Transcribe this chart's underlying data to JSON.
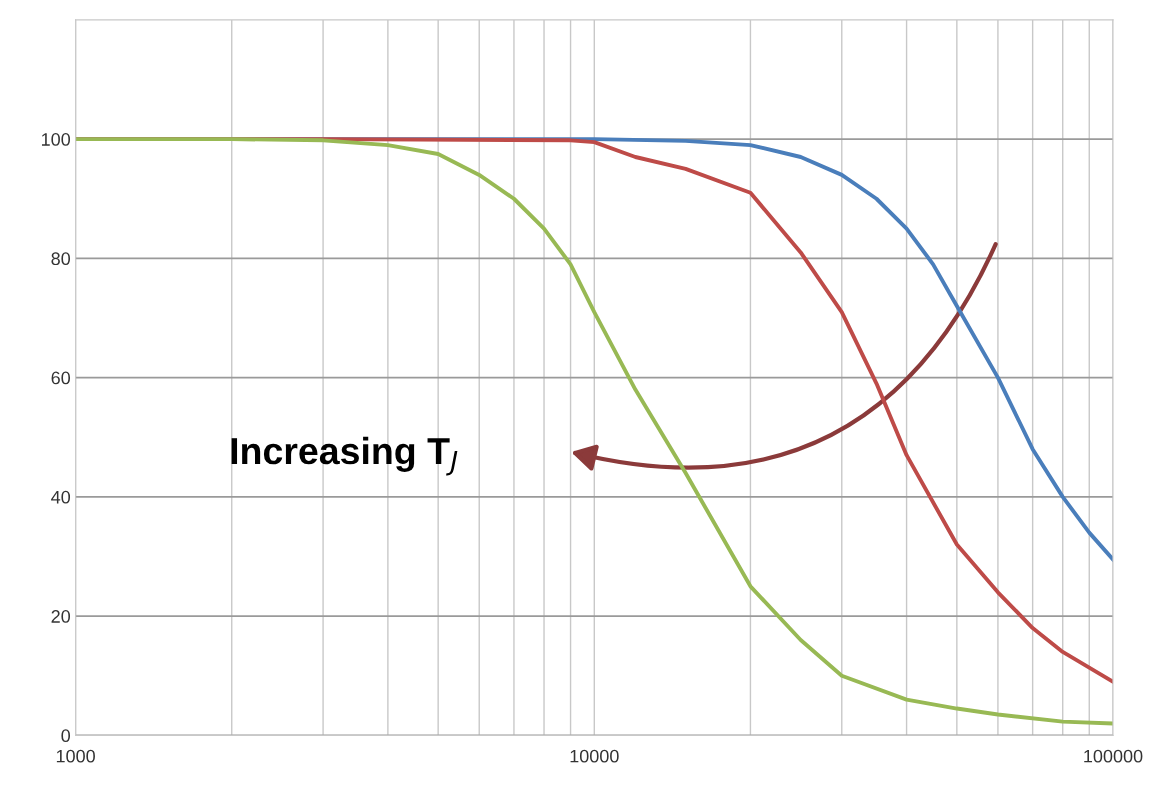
{
  "chart_data": {
    "type": "line",
    "log": "x",
    "xlim": [
      1000,
      100000
    ],
    "xticks": [
      1000,
      10000,
      100000
    ],
    "ylim": [
      0,
      120
    ],
    "yticks": [
      0,
      20,
      40,
      60,
      80,
      100
    ],
    "grid": true,
    "marker": "none",
    "line_style": "solid",
    "annotations": [
      "Increasing T$_{J}$"
    ],
    "series": [
      {
        "color": "#4a7ebb",
        "x": [
          1000,
          10000,
          15000,
          20000,
          25000,
          30000,
          35000,
          40000,
          45000,
          50000,
          60000,
          70000,
          80000,
          90000,
          100000
        ],
        "values": [
          100,
          100,
          99.7,
          99,
          97,
          94,
          90,
          85,
          79,
          72,
          60,
          48,
          40,
          34,
          29.5
        ]
      },
      {
        "color": "#be4b48",
        "x": [
          1000,
          3000,
          9000,
          10000,
          12000,
          15000,
          20000,
          25000,
          30000,
          35000,
          40000,
          50000,
          60000,
          70000,
          80000,
          100000
        ],
        "values": [
          100,
          100,
          99.8,
          99.5,
          97,
          95,
          91,
          81,
          71,
          59,
          47,
          32,
          24,
          18,
          14,
          9
        ]
      },
      {
        "color": "#98b954",
        "x": [
          1000,
          2000,
          3000,
          4000,
          5000,
          6000,
          7000,
          8000,
          9000,
          10000,
          12000,
          15000,
          20000,
          25000,
          30000,
          40000,
          50000,
          60000,
          80000,
          100000
        ],
        "values": [
          100,
          100,
          99.8,
          99,
          97.5,
          94,
          90,
          85,
          79,
          71,
          58,
          44,
          25,
          16,
          10,
          6,
          4.5,
          3.5,
          2.3,
          2
        ]
      }
    ]
  }
}
